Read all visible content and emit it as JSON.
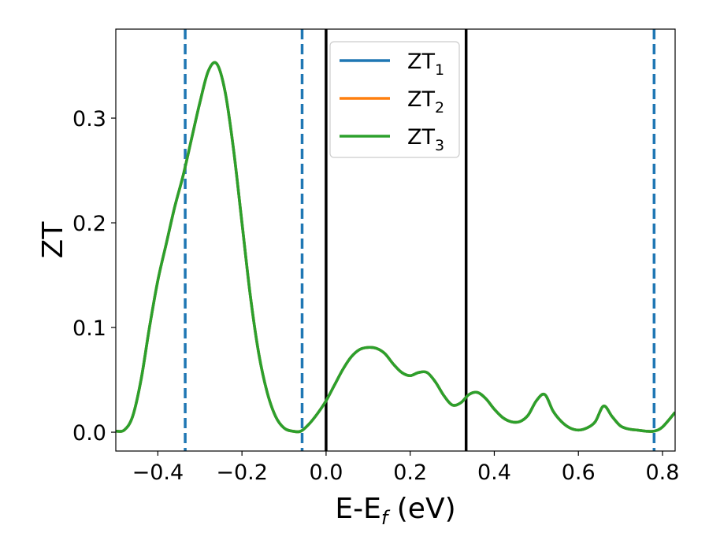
{
  "chart_data": {
    "type": "line",
    "xlabel": {
      "main": "E-E",
      "sub": "f",
      "suffix": " (eV)"
    },
    "ylabel": "ZT",
    "xlim": [
      -0.5,
      0.83
    ],
    "ylim": [
      -0.018,
      0.385
    ],
    "x_ticks": [
      {
        "value": -0.4,
        "label": "−0.4"
      },
      {
        "value": -0.2,
        "label": "−0.2"
      },
      {
        "value": 0.0,
        "label": "0.0"
      },
      {
        "value": 0.2,
        "label": "0.2"
      },
      {
        "value": 0.4,
        "label": "0.4"
      },
      {
        "value": 0.6,
        "label": "0.6"
      },
      {
        "value": 0.8,
        "label": "0.8"
      }
    ],
    "y_ticks": [
      {
        "value": 0.0,
        "label": "0.0"
      },
      {
        "value": 0.1,
        "label": "0.1"
      },
      {
        "value": 0.2,
        "label": "0.2"
      },
      {
        "value": 0.3,
        "label": "0.3"
      }
    ],
    "legend": {
      "placement": "top-center",
      "entries": [
        {
          "base": "ZT",
          "sub": "1",
          "color": "#1f77b4"
        },
        {
          "base": "ZT",
          "sub": "2",
          "color": "#ff7f0e"
        },
        {
          "base": "ZT",
          "sub": "3",
          "color": "#2ca02c"
        }
      ]
    },
    "series_x": [
      -0.5,
      -0.48,
      -0.46,
      -0.44,
      -0.42,
      -0.4,
      -0.38,
      -0.36,
      -0.34,
      -0.32,
      -0.3,
      -0.28,
      -0.26,
      -0.24,
      -0.22,
      -0.2,
      -0.18,
      -0.16,
      -0.14,
      -0.12,
      -0.1,
      -0.08,
      -0.06,
      -0.04,
      -0.02,
      0.0,
      0.02,
      0.04,
      0.06,
      0.08,
      0.1,
      0.12,
      0.14,
      0.16,
      0.18,
      0.2,
      0.22,
      0.24,
      0.26,
      0.28,
      0.3,
      0.32,
      0.34,
      0.36,
      0.38,
      0.4,
      0.42,
      0.44,
      0.46,
      0.48,
      0.5,
      0.52,
      0.54,
      0.56,
      0.58,
      0.6,
      0.62,
      0.64,
      0.66,
      0.68,
      0.7,
      0.72,
      0.74,
      0.76,
      0.78,
      0.8,
      0.83
    ],
    "series": [
      {
        "name": "ZT1",
        "color": "#1f77b4",
        "values": [
          0.001,
          0.002,
          0.015,
          0.05,
          0.1,
          0.145,
          0.18,
          0.215,
          0.245,
          0.28,
          0.315,
          0.345,
          0.352,
          0.325,
          0.27,
          0.2,
          0.13,
          0.075,
          0.038,
          0.015,
          0.004,
          0.001,
          0.001,
          0.008,
          0.018,
          0.03,
          0.045,
          0.06,
          0.072,
          0.079,
          0.081,
          0.08,
          0.075,
          0.065,
          0.057,
          0.054,
          0.057,
          0.057,
          0.048,
          0.035,
          0.026,
          0.028,
          0.036,
          0.038,
          0.032,
          0.022,
          0.014,
          0.01,
          0.01,
          0.016,
          0.03,
          0.036,
          0.02,
          0.01,
          0.004,
          0.002,
          0.004,
          0.01,
          0.025,
          0.015,
          0.006,
          0.003,
          0.002,
          0.001,
          0.001,
          0.005,
          0.019
        ]
      },
      {
        "name": "ZT2",
        "color": "#ff7f0e",
        "values": [
          0.001,
          0.002,
          0.015,
          0.05,
          0.1,
          0.145,
          0.18,
          0.215,
          0.245,
          0.28,
          0.315,
          0.345,
          0.352,
          0.325,
          0.27,
          0.2,
          0.13,
          0.075,
          0.038,
          0.015,
          0.004,
          0.001,
          0.001,
          0.008,
          0.018,
          0.03,
          0.045,
          0.06,
          0.072,
          0.079,
          0.081,
          0.08,
          0.075,
          0.065,
          0.057,
          0.054,
          0.057,
          0.057,
          0.048,
          0.035,
          0.026,
          0.028,
          0.036,
          0.038,
          0.032,
          0.022,
          0.014,
          0.01,
          0.01,
          0.016,
          0.03,
          0.036,
          0.02,
          0.01,
          0.004,
          0.002,
          0.004,
          0.01,
          0.025,
          0.015,
          0.006,
          0.003,
          0.002,
          0.001,
          0.001,
          0.005,
          0.019
        ]
      },
      {
        "name": "ZT3",
        "color": "#2ca02c",
        "values": [
          0.001,
          0.002,
          0.015,
          0.05,
          0.1,
          0.145,
          0.18,
          0.215,
          0.245,
          0.28,
          0.315,
          0.345,
          0.352,
          0.325,
          0.27,
          0.2,
          0.13,
          0.075,
          0.038,
          0.015,
          0.004,
          0.001,
          0.001,
          0.008,
          0.018,
          0.03,
          0.045,
          0.06,
          0.072,
          0.079,
          0.081,
          0.08,
          0.075,
          0.065,
          0.057,
          0.054,
          0.057,
          0.057,
          0.048,
          0.035,
          0.026,
          0.028,
          0.036,
          0.038,
          0.032,
          0.022,
          0.014,
          0.01,
          0.01,
          0.016,
          0.03,
          0.036,
          0.02,
          0.01,
          0.004,
          0.002,
          0.004,
          0.01,
          0.025,
          0.015,
          0.006,
          0.003,
          0.002,
          0.001,
          0.001,
          0.005,
          0.019
        ]
      }
    ],
    "vlines": [
      {
        "x": -0.335,
        "style": "dashed",
        "color": "#1f77b4"
      },
      {
        "x": -0.057,
        "style": "dashed",
        "color": "#1f77b4"
      },
      {
        "x": 0.0,
        "style": "solid",
        "color": "#000000"
      },
      {
        "x": 0.333,
        "style": "solid",
        "color": "#000000"
      },
      {
        "x": 0.78,
        "style": "dashed",
        "color": "#1f77b4"
      }
    ],
    "grid": false
  }
}
